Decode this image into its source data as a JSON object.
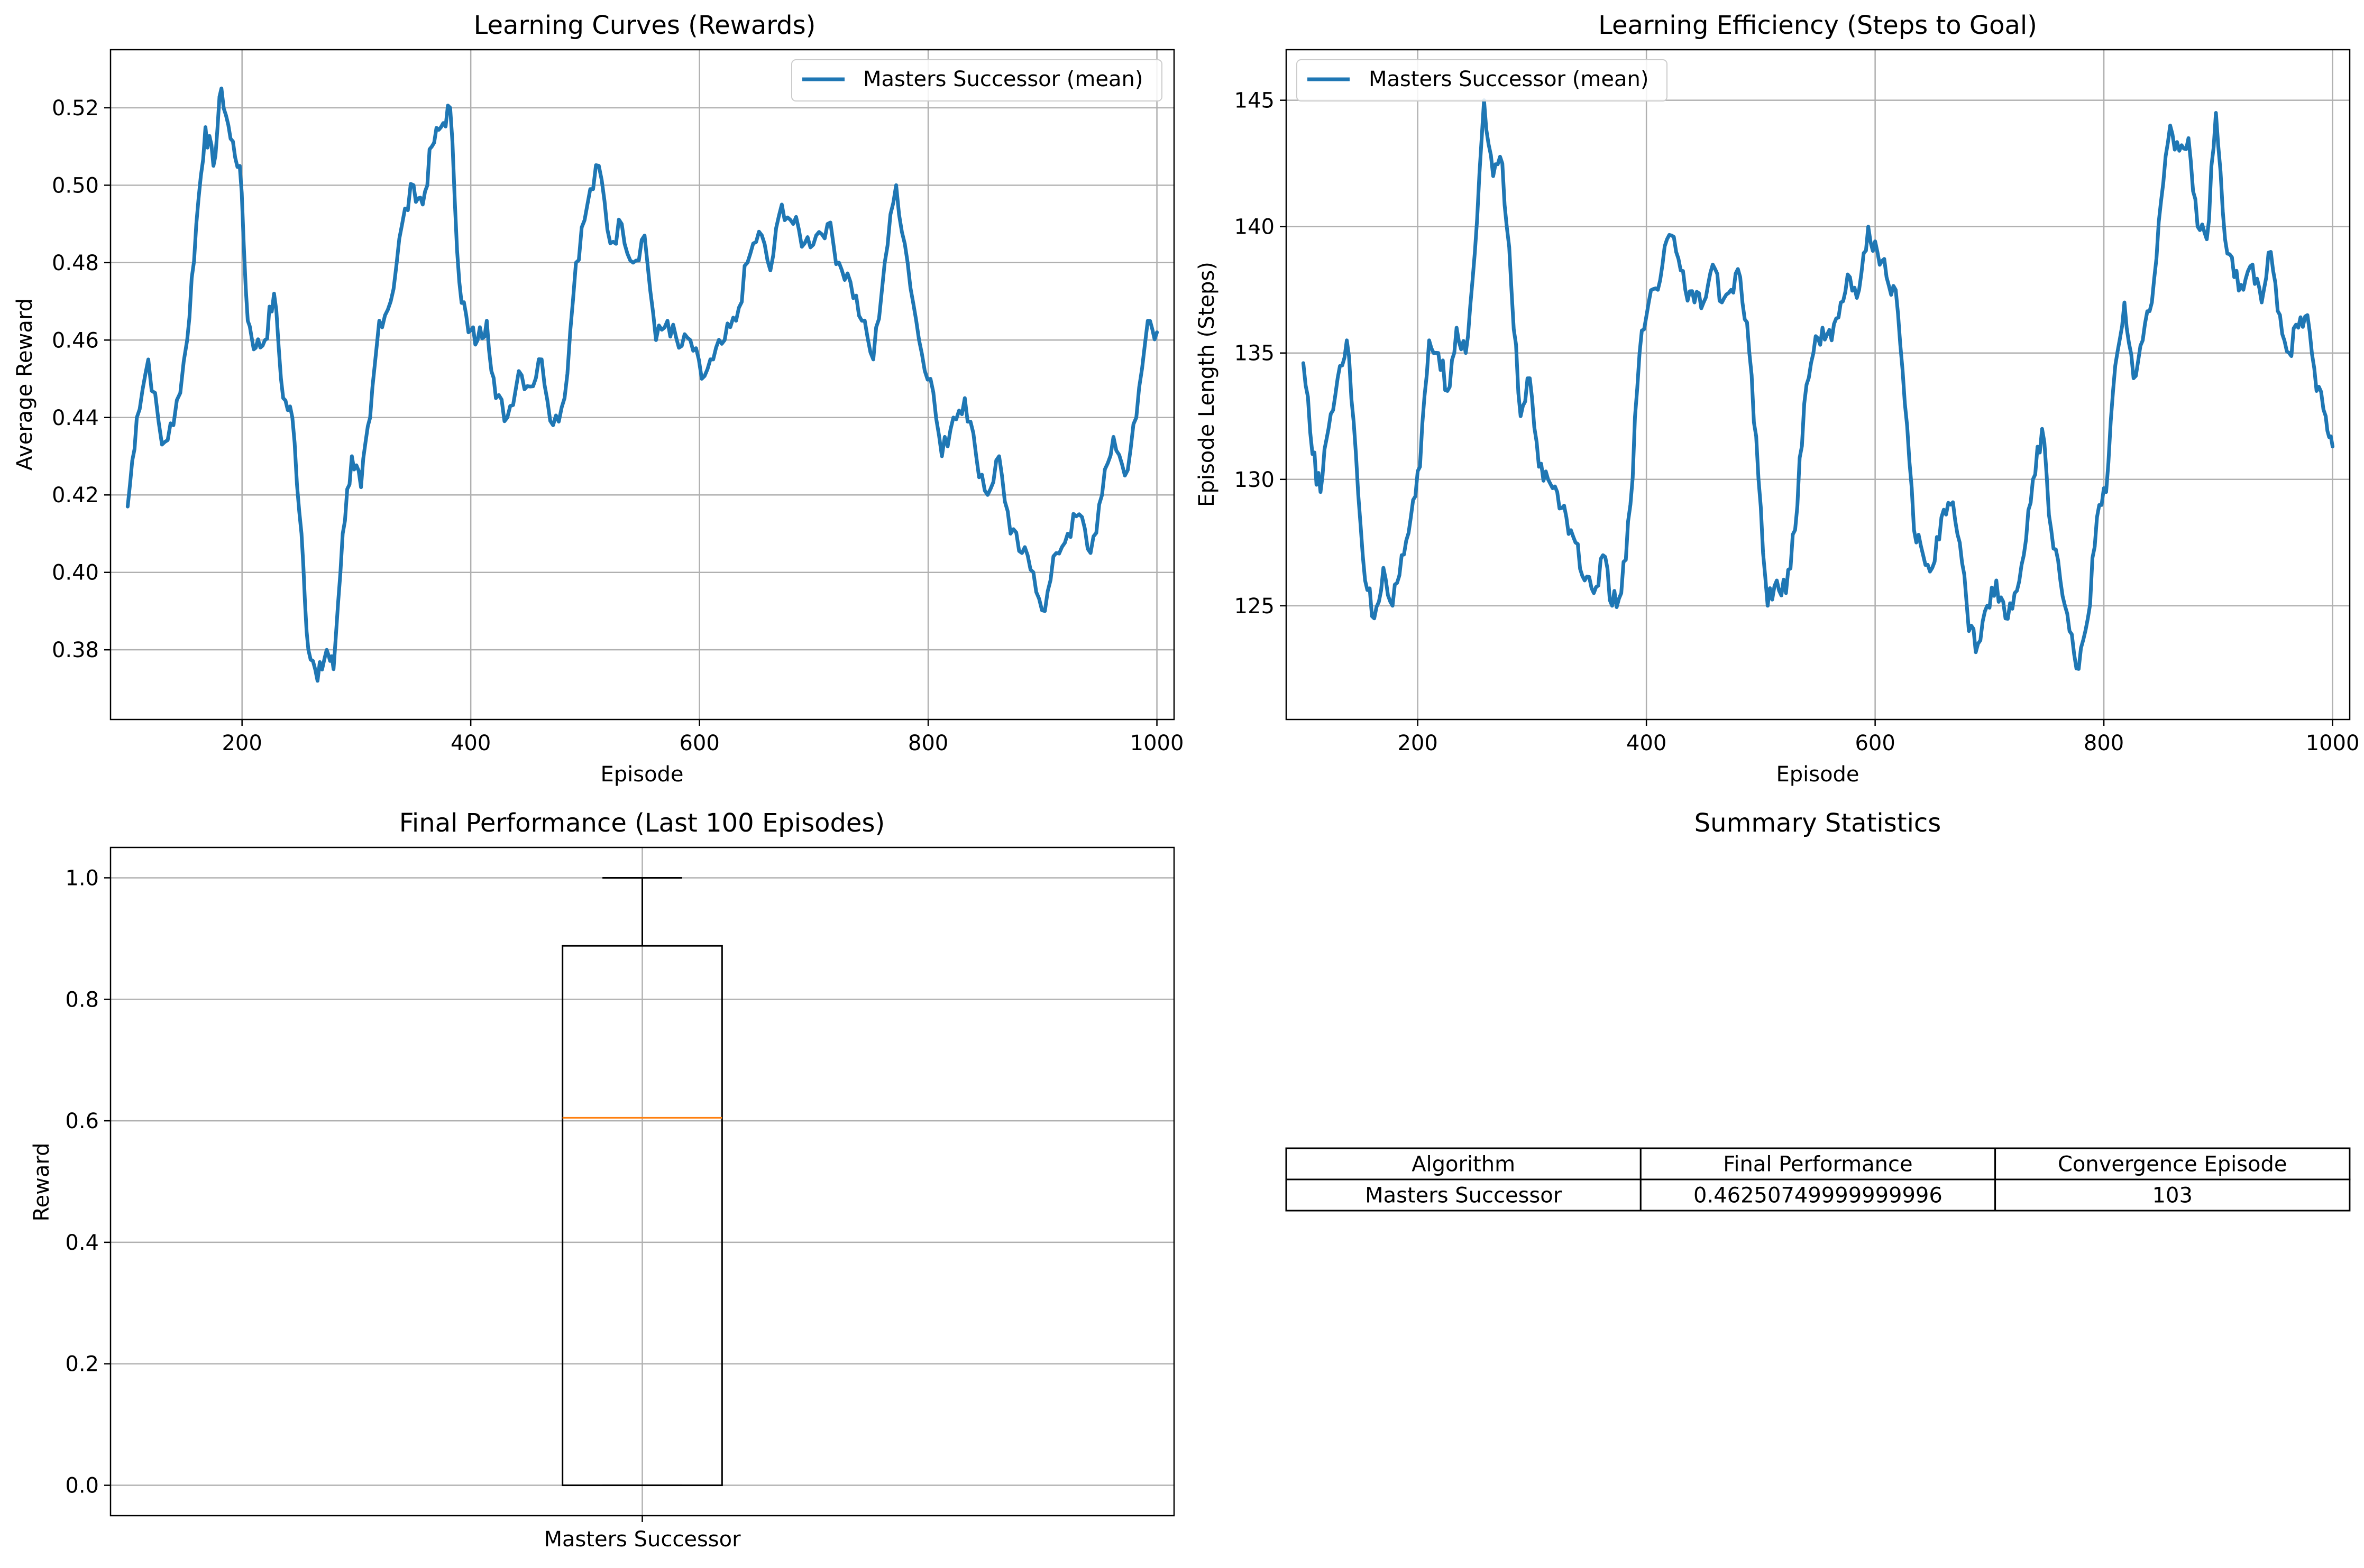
{
  "chart_data": [
    {
      "type": "line",
      "title": "Learning Curves (Rewards)",
      "xlabel": "Episode",
      "ylabel": "Average Reward",
      "xlim": [
        85,
        1015
      ],
      "ylim": [
        0.362,
        0.535
      ],
      "xticks": [
        200,
        400,
        600,
        800,
        1000
      ],
      "yticks": [
        0.38,
        0.4,
        0.42,
        0.44,
        0.46,
        0.48,
        0.5,
        0.52
      ],
      "ytick_decimals": 2,
      "grid": true,
      "legend": "upper right",
      "series": [
        {
          "name": "Masters Successor (mean)",
          "color": "#1f77b4",
          "x": [
            100,
            108,
            118,
            130,
            140,
            152,
            160,
            168,
            175,
            182,
            190,
            198,
            205,
            212,
            220,
            228,
            236,
            244,
            252,
            258,
            266,
            274,
            280,
            288,
            296,
            304,
            312,
            320,
            330,
            340,
            350,
            358,
            366,
            374,
            382,
            390,
            398,
            406,
            414,
            422,
            432,
            442,
            452,
            462,
            472,
            482,
            492,
            502,
            512,
            522,
            532,
            542,
            552,
            562,
            572,
            582,
            592,
            602,
            612,
            622,
            632,
            642,
            652,
            662,
            672,
            682,
            692,
            702,
            712,
            722,
            732,
            742,
            752,
            762,
            772,
            782,
            792,
            802,
            812,
            822,
            832,
            842,
            852,
            862,
            872,
            882,
            892,
            902,
            912,
            922,
            932,
            942,
            952,
            962,
            972,
            982,
            992,
            1000
          ],
          "values": [
            0.417,
            0.44,
            0.455,
            0.433,
            0.438,
            0.46,
            0.49,
            0.515,
            0.505,
            0.525,
            0.512,
            0.505,
            0.465,
            0.458,
            0.46,
            0.472,
            0.445,
            0.44,
            0.41,
            0.38,
            0.372,
            0.38,
            0.375,
            0.41,
            0.43,
            0.422,
            0.44,
            0.465,
            0.47,
            0.49,
            0.5,
            0.495,
            0.51,
            0.515,
            0.52,
            0.475,
            0.462,
            0.46,
            0.465,
            0.445,
            0.44,
            0.452,
            0.448,
            0.455,
            0.438,
            0.445,
            0.48,
            0.495,
            0.505,
            0.485,
            0.49,
            0.48,
            0.487,
            0.46,
            0.465,
            0.458,
            0.46,
            0.45,
            0.455,
            0.46,
            0.465,
            0.48,
            0.488,
            0.478,
            0.495,
            0.49,
            0.485,
            0.487,
            0.49,
            0.48,
            0.475,
            0.465,
            0.455,
            0.48,
            0.5,
            0.48,
            0.46,
            0.45,
            0.43,
            0.44,
            0.445,
            0.43,
            0.42,
            0.43,
            0.41,
            0.405,
            0.4,
            0.39,
            0.405,
            0.41,
            0.415,
            0.405,
            0.42,
            0.435,
            0.425,
            0.44,
            0.465,
            0.462
          ]
        }
      ]
    },
    {
      "type": "line",
      "title": "Learning Efficiency (Steps to Goal)",
      "xlabel": "Episode",
      "ylabel": "Episode Length (Steps)",
      "xlim": [
        85,
        1015
      ],
      "ylim": [
        120.5,
        147.0
      ],
      "xticks": [
        200,
        400,
        600,
        800,
        1000
      ],
      "yticks": [
        125,
        130,
        135,
        140,
        145
      ],
      "ytick_decimals": 0,
      "grid": true,
      "legend": "upper left",
      "series": [
        {
          "name": "Masters Successor (mean)",
          "color": "#1f77b4",
          "x": [
            100,
            108,
            115,
            122,
            130,
            138,
            146,
            154,
            162,
            170,
            178,
            186,
            194,
            202,
            210,
            218,
            226,
            234,
            242,
            250,
            258,
            266,
            274,
            282,
            290,
            298,
            306,
            314,
            322,
            330,
            338,
            346,
            354,
            362,
            370,
            378,
            386,
            394,
            402,
            410,
            418,
            426,
            434,
            442,
            450,
            458,
            466,
            474,
            482,
            490,
            498,
            506,
            514,
            522,
            530,
            538,
            546,
            554,
            562,
            570,
            578,
            586,
            594,
            602,
            610,
            618,
            626,
            634,
            642,
            650,
            658,
            666,
            674,
            682,
            690,
            698,
            706,
            714,
            722,
            730,
            738,
            746,
            754,
            762,
            770,
            778,
            786,
            794,
            802,
            810,
            818,
            826,
            834,
            842,
            850,
            858,
            866,
            874,
            882,
            890,
            898,
            906,
            914,
            922,
            930,
            938,
            946,
            954,
            962,
            970,
            978,
            986,
            994,
            1000
          ],
          "values": [
            134.6,
            131.0,
            129.5,
            132.0,
            134.0,
            135.5,
            131.0,
            126.0,
            124.5,
            126.5,
            125.0,
            127.0,
            128.5,
            130.5,
            135.5,
            135.0,
            133.5,
            136.0,
            135.0,
            139.0,
            145.0,
            142.0,
            142.5,
            137.5,
            132.5,
            134.0,
            130.5,
            130.0,
            129.5,
            128.5,
            127.5,
            126.0,
            125.5,
            127.0,
            125.0,
            125.5,
            129.0,
            135.0,
            137.0,
            137.5,
            139.5,
            139.0,
            137.5,
            137.0,
            137.0,
            138.5,
            137.0,
            137.5,
            138.0,
            135.0,
            130.0,
            125.0,
            126.0,
            125.5,
            128.0,
            133.0,
            135.0,
            136.0,
            135.5,
            137.0,
            138.0,
            137.5,
            140.0,
            139.0,
            138.0,
            137.5,
            133.0,
            128.0,
            127.0,
            126.5,
            128.5,
            129.0,
            127.5,
            124.0,
            123.5,
            125.0,
            126.0,
            124.5,
            125.5,
            127.0,
            130.0,
            132.0,
            128.0,
            126.0,
            124.0,
            122.5,
            124.5,
            128.5,
            129.5,
            134.5,
            137.0,
            134.0,
            135.5,
            137.0,
            141.0,
            144.0,
            143.0,
            143.5,
            140.0,
            139.5,
            144.5,
            139.5,
            138.0,
            137.5,
            138.5,
            137.0,
            139.0,
            136.5,
            135.0,
            136.0,
            136.5,
            133.5,
            132.5,
            131.3
          ]
        }
      ]
    },
    {
      "type": "box",
      "title": "Final Performance (Last 100 Episodes)",
      "ylabel": "Reward",
      "ylim": [
        -0.05,
        1.05
      ],
      "yticks": [
        0.0,
        0.2,
        0.4,
        0.6,
        0.8,
        1.0
      ],
      "ytick_decimals": 1,
      "grid": true,
      "categories": [
        "Masters Successor"
      ],
      "boxes": [
        {
          "label": "Masters Successor",
          "min": 0.0,
          "q1": 0.0,
          "median": 0.605,
          "q3": 0.888,
          "max": 1.0
        }
      ],
      "colors": {
        "box": "#000000",
        "median": "#ff7f0e"
      }
    },
    {
      "type": "table",
      "title": "Summary Statistics",
      "columns": [
        "Algorithm",
        "Final Performance",
        "Convergence Episode"
      ],
      "rows": [
        [
          "Masters Successor",
          "0.46250749999999996",
          "103"
        ]
      ]
    }
  ]
}
